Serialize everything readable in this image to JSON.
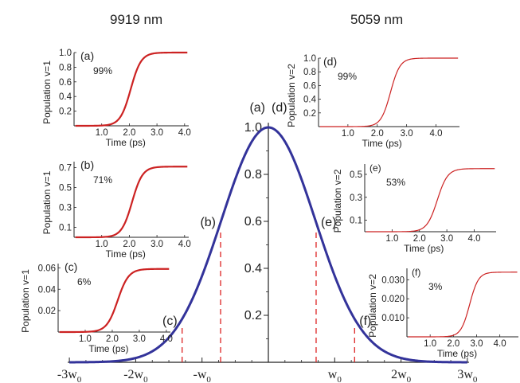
{
  "headers": {
    "left": "9919 nm",
    "right": "5059 nm"
  },
  "colors": {
    "main_curve": "#33339a",
    "transition": "#cc2222",
    "axis": "#222222",
    "marker": "#dd2222"
  },
  "chart_data": [
    {
      "id": "main",
      "type": "line",
      "function": "gaussian exp(-(x/w0)^2)",
      "x": [
        -3,
        -2.5,
        -2,
        -1.75,
        -1.5,
        -1.25,
        -1,
        -0.75,
        -0.5,
        -0.25,
        0,
        0.25,
        0.5,
        0.75,
        1,
        1.25,
        1.5,
        1.75,
        2,
        2.5,
        3
      ],
      "y": [
        0.0001,
        0.0019,
        0.0183,
        0.0468,
        0.1054,
        0.2096,
        0.3679,
        0.5698,
        0.7788,
        0.9394,
        1.0,
        0.9394,
        0.7788,
        0.5698,
        0.3679,
        0.2096,
        0.1054,
        0.0468,
        0.0183,
        0.0019,
        0.0001
      ],
      "xlim": [
        -3,
        3
      ],
      "ylim": [
        0,
        1.0
      ],
      "xticks": [
        -3,
        -2,
        -1,
        1,
        2,
        3
      ],
      "xticklabels": [
        {
          "pre": "-3w",
          "sub": "0"
        },
        {
          "pre": "-2w",
          "sub": "0"
        },
        {
          "pre": "-w",
          "sub": "0"
        },
        {
          "pre": "w",
          "sub": "0"
        },
        {
          "pre": "2w",
          "sub": "0"
        },
        {
          "pre": "3w",
          "sub": "0"
        }
      ],
      "yticks": [
        0.2,
        0.4,
        0.6,
        0.8,
        1.0
      ],
      "yticklabels": [
        "0.2",
        "0.4",
        "0.6",
        "0.8",
        "1.0"
      ],
      "markers": [
        {
          "x": -1.3,
          "y": 0.18,
          "label": "(c)"
        },
        {
          "x": -0.72,
          "y": 0.6,
          "label": "(b)"
        },
        {
          "x": 0.72,
          "y": 0.6,
          "label": "(e)"
        },
        {
          "x": 1.3,
          "y": 0.18,
          "label": "(f)"
        }
      ],
      "peak_labels": [
        "(a)",
        "(d)"
      ]
    },
    {
      "id": "a",
      "type": "line",
      "panel": "(a)",
      "percent": "99%",
      "ylabel": "Population v=1",
      "xlabel": "Time (ps)",
      "xticks": [
        "1.0",
        "2.0",
        "3.0",
        "4.0"
      ],
      "yticks": [
        "0.2",
        "0.4",
        "0.6",
        "0.8",
        "1.0"
      ],
      "ylim": [
        0,
        1.0
      ],
      "plateau": 1.0,
      "center_ps": 2.05,
      "width_ps": 0.42,
      "x_end_ps": 4.1,
      "style": "thick"
    },
    {
      "id": "b",
      "type": "line",
      "panel": "(b)",
      "percent": "71%",
      "ylabel": "Population v=1",
      "xlabel": "Time (ps)",
      "xticks": [
        "1.0",
        "2.0",
        "3.0",
        "4.0"
      ],
      "yticks": [
        "0.1",
        "0.3",
        "0.5",
        "0.7"
      ],
      "ylim": [
        0,
        0.76
      ],
      "plateau": 0.71,
      "center_ps": 2.1,
      "width_ps": 0.42,
      "x_end_ps": 4.1,
      "style": "thick"
    },
    {
      "id": "c",
      "type": "line",
      "panel": "(c)",
      "percent": "6%",
      "ylabel": "Population v=1",
      "xlabel": "Time (ps)",
      "xticks": [
        "1.0",
        "2.0",
        "3.0",
        "4.0"
      ],
      "yticks": [
        "0.02",
        "0.04",
        "0.06"
      ],
      "ylim": [
        0,
        0.064
      ],
      "plateau": 0.059,
      "center_ps": 2.2,
      "width_ps": 0.45,
      "x_end_ps": 4.1,
      "style": "thick"
    },
    {
      "id": "d",
      "type": "line",
      "panel": "(d)",
      "percent": "99%",
      "ylabel": "Population v=2",
      "xlabel": "Time (ps)",
      "xticks": [
        "1.0",
        "2.0",
        "3.0",
        "4.0"
      ],
      "yticks": [
        "0.2",
        "0.4",
        "0.6",
        "0.8",
        "1.0"
      ],
      "ylim": [
        0,
        1.0
      ],
      "plateau": 1.0,
      "center_ps": 2.45,
      "width_ps": 0.36,
      "x_end_ps": 4.75,
      "style": "thin"
    },
    {
      "id": "e",
      "type": "line",
      "panel": "(e)",
      "percent": "53%",
      "ylabel": "Population v=2",
      "xlabel": "Time (ps)",
      "xticks": [
        "1.0",
        "2.0",
        "3.0",
        "4.0"
      ],
      "yticks": [
        "0.1",
        "0.3",
        "0.5"
      ],
      "ylim": [
        0,
        0.59
      ],
      "plateau": 0.55,
      "center_ps": 2.65,
      "width_ps": 0.42,
      "x_end_ps": 4.75,
      "style": "thin"
    },
    {
      "id": "f",
      "type": "line",
      "panel": "(f)",
      "percent": "3%",
      "ylabel": "Population v=2",
      "xlabel": "Time (ps)",
      "xticks": [
        "1.0",
        "2.0",
        "3.0",
        "4.0"
      ],
      "yticks": [
        "0.010",
        "0.020",
        "0.030"
      ],
      "ylim": [
        0,
        0.036
      ],
      "plateau": 0.034,
      "center_ps": 2.7,
      "width_ps": 0.42,
      "x_end_ps": 4.75,
      "style": "thin"
    }
  ]
}
